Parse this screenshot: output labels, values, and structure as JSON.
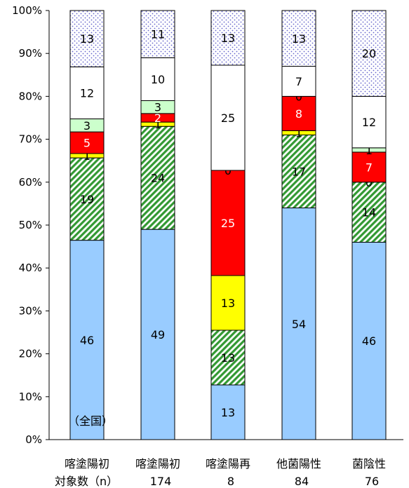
{
  "chart_data": {
    "type": "bar",
    "stacked": true,
    "normalized_percent": true,
    "categories": [
      "喀塗陽初",
      "喀塗陽初",
      "喀塗陽再",
      "他菌陽性",
      "菌陰性"
    ],
    "n_prefix": "対象数（n）",
    "n_values": [
      "",
      "174",
      "8",
      "84",
      "76"
    ],
    "ylim": [
      0,
      100
    ],
    "y_ticks": [
      "0%",
      "10%",
      "20%",
      "30%",
      "40%",
      "50%",
      "60%",
      "70%",
      "80%",
      "90%",
      "100%"
    ],
    "series": [
      {
        "values": [
          46,
          49,
          13,
          54,
          46
        ],
        "color": "#99ccff",
        "pattern": "solid"
      },
      {
        "values": [
          19,
          24,
          13,
          17,
          14
        ],
        "color": "#339933",
        "pattern": "diagonal-hatch"
      },
      {
        "values": [
          1,
          1,
          13,
          1,
          0
        ],
        "color": "#ffff00",
        "pattern": "solid"
      },
      {
        "values": [
          5,
          2,
          25,
          8,
          7
        ],
        "color": "#ff0000",
        "pattern": "solid"
      },
      {
        "values": [
          3,
          3,
          0,
          0,
          1
        ],
        "color": "#ccffcc",
        "pattern": "solid"
      },
      {
        "values": [
          12,
          10,
          25,
          7,
          12
        ],
        "color": "#ffffff",
        "pattern": "solid"
      },
      {
        "values": [
          13,
          11,
          13,
          13,
          20
        ],
        "color": "#6666cc",
        "pattern": "dots"
      }
    ],
    "annotation": "（全国）"
  }
}
